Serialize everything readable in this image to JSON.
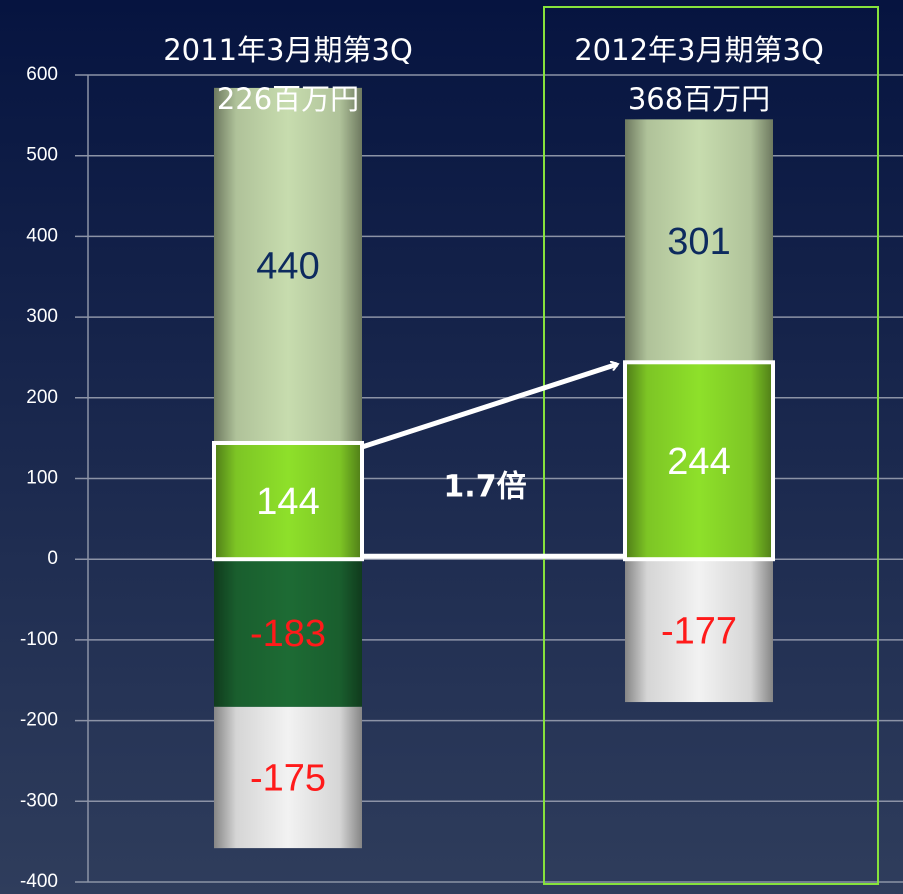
{
  "chart_data": {
    "type": "stacked_bar",
    "categories": [
      "2011年3月期第3Q",
      "2012年3月期第3Q"
    ],
    "totals": [
      "226百万円",
      "368百万円"
    ],
    "annotation": "1.7倍",
    "series": [
      {
        "color": "#8ee02a",
        "label_color": "#ffffff",
        "values": [
          144,
          244
        ]
      },
      {
        "color": "#c7dcae",
        "label_color": "#0d2a5e",
        "values": [
          440,
          301
        ]
      },
      {
        "color": "#1d6b34",
        "label_color": "#ff1a1a",
        "values": [
          -183,
          null
        ]
      },
      {
        "color": "#f2f2f2",
        "label_color": "#ff1a1a",
        "values": [
          -175,
          -177
        ]
      }
    ],
    "ylim": [
      -400,
      600
    ],
    "yticks": [
      -400,
      -300,
      -200,
      -100,
      0,
      100,
      200,
      300,
      400,
      500,
      600
    ],
    "grid": true
  }
}
